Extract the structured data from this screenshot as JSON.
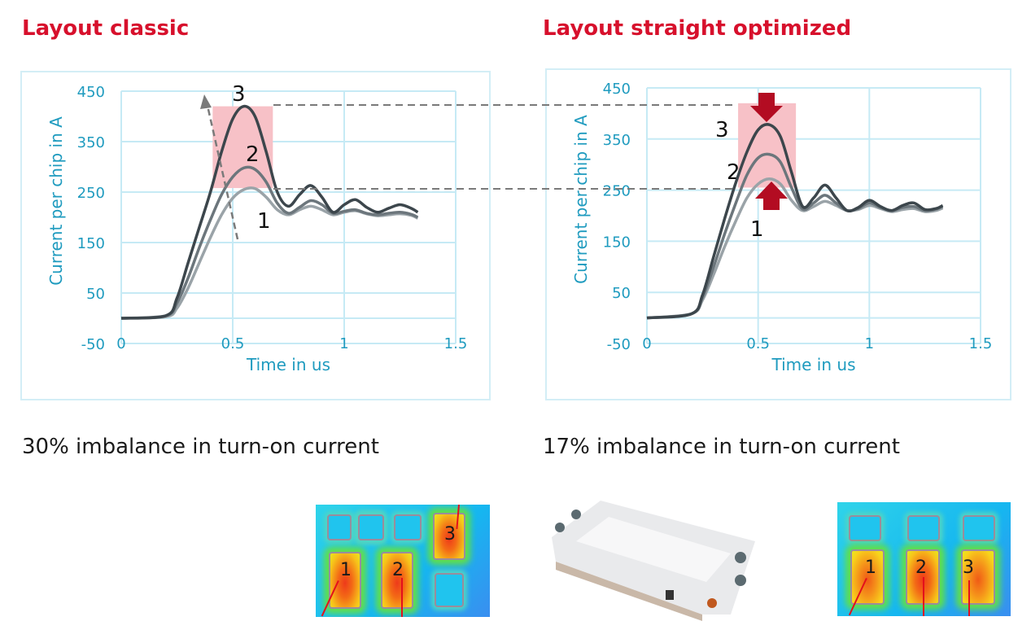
{
  "left": {
    "title": "Layout classic",
    "caption": "30% imbalance in turn-on current",
    "chips": [
      "1",
      "2",
      "3"
    ]
  },
  "right": {
    "title": "Layout straight optimized",
    "caption": "17% imbalance in turn-on current",
    "chips": [
      "1",
      "2",
      "3"
    ]
  },
  "colors": {
    "title": "#d7102c",
    "axis_text": "#1f9bbf",
    "grid": "#c6eaf5",
    "highlight": "#f7c1c7",
    "arrow": "#b30c22",
    "series": [
      "#9aa3a8",
      "#6c767c",
      "#3c464c"
    ]
  },
  "chart_data": [
    {
      "type": "line",
      "title": "Layout classic",
      "xlabel": "Time in us",
      "ylabel": "Current per chip in A",
      "xlim": [
        0,
        1.5
      ],
      "ylim": [
        -50,
        450
      ],
      "xticks": [
        "0",
        "0.5",
        "1",
        "1.5"
      ],
      "yticks": [
        "450",
        "350",
        "250",
        "150",
        "50",
        "-50"
      ],
      "grid": true,
      "highlight_band": {
        "x": [
          0.41,
          0.68
        ],
        "y": [
          258,
          420
        ]
      },
      "series": [
        {
          "name": "1",
          "x": [
            0,
            0.2,
            0.25,
            0.3,
            0.35,
            0.4,
            0.45,
            0.5,
            0.55,
            0.6,
            0.65,
            0.7,
            0.75,
            0.8,
            0.85,
            0.9,
            0.95,
            1.0,
            1.05,
            1.1,
            1.15,
            1.2,
            1.25,
            1.3,
            1.33
          ],
          "y": [
            0,
            3,
            20,
            60,
            110,
            160,
            205,
            238,
            255,
            257,
            240,
            215,
            205,
            215,
            222,
            215,
            205,
            210,
            213,
            207,
            203,
            205,
            207,
            204,
            198
          ]
        },
        {
          "name": "2",
          "x": [
            0,
            0.2,
            0.25,
            0.3,
            0.35,
            0.4,
            0.45,
            0.5,
            0.55,
            0.6,
            0.65,
            0.7,
            0.75,
            0.8,
            0.85,
            0.9,
            0.95,
            1.0,
            1.05,
            1.1,
            1.15,
            1.2,
            1.25,
            1.3,
            1.33
          ],
          "y": [
            0,
            5,
            30,
            80,
            140,
            195,
            245,
            280,
            298,
            295,
            270,
            228,
            208,
            220,
            233,
            225,
            208,
            212,
            215,
            208,
            205,
            208,
            210,
            206,
            200
          ]
        },
        {
          "name": "3",
          "x": [
            0,
            0.2,
            0.25,
            0.3,
            0.35,
            0.4,
            0.45,
            0.5,
            0.55,
            0.6,
            0.65,
            0.7,
            0.75,
            0.8,
            0.85,
            0.9,
            0.95,
            1.0,
            1.05,
            1.1,
            1.15,
            1.2,
            1.25,
            1.3,
            1.33
          ],
          "y": [
            0,
            5,
            40,
            110,
            180,
            250,
            330,
            395,
            420,
            400,
            330,
            250,
            222,
            245,
            263,
            240,
            210,
            225,
            235,
            220,
            210,
            218,
            225,
            218,
            210
          ]
        }
      ]
    },
    {
      "type": "line",
      "title": "Layout straight optimized",
      "xlabel": "Time in us",
      "ylabel": "Current per chip in A",
      "xlim": [
        0,
        1.5
      ],
      "ylim": [
        -50,
        450
      ],
      "xticks": [
        "0",
        "0.5",
        "1",
        "1.5"
      ],
      "yticks": [
        "450",
        "350",
        "250",
        "150",
        "50",
        "-50"
      ],
      "grid": true,
      "highlight_band": {
        "x": [
          0.41,
          0.67
        ],
        "y": [
          255,
          420
        ]
      },
      "series": [
        {
          "name": "1",
          "x": [
            0,
            0.2,
            0.25,
            0.3,
            0.35,
            0.4,
            0.45,
            0.5,
            0.55,
            0.6,
            0.65,
            0.7,
            0.75,
            0.8,
            0.85,
            0.9,
            0.95,
            1.0,
            1.05,
            1.1,
            1.15,
            1.2,
            1.25,
            1.3,
            1.33
          ],
          "y": [
            0,
            8,
            35,
            85,
            140,
            190,
            235,
            262,
            272,
            262,
            230,
            210,
            218,
            228,
            220,
            210,
            212,
            220,
            214,
            208,
            212,
            214,
            208,
            210,
            215
          ]
        },
        {
          "name": "2",
          "x": [
            0,
            0.2,
            0.25,
            0.3,
            0.35,
            0.4,
            0.45,
            0.5,
            0.55,
            0.6,
            0.65,
            0.7,
            0.75,
            0.8,
            0.85,
            0.9,
            0.95,
            1.0,
            1.05,
            1.1,
            1.15,
            1.2,
            1.25,
            1.3,
            1.33
          ],
          "y": [
            0,
            8,
            40,
            100,
            165,
            225,
            280,
            313,
            320,
            305,
            255,
            213,
            225,
            240,
            225,
            210,
            214,
            225,
            216,
            210,
            216,
            218,
            210,
            213,
            218
          ]
        },
        {
          "name": "3",
          "x": [
            0,
            0.2,
            0.25,
            0.3,
            0.35,
            0.4,
            0.45,
            0.5,
            0.55,
            0.6,
            0.65,
            0.7,
            0.75,
            0.8,
            0.85,
            0.9,
            0.95,
            1.0,
            1.05,
            1.1,
            1.15,
            1.2,
            1.25,
            1.3,
            1.33
          ],
          "y": [
            0,
            8,
            45,
            120,
            195,
            265,
            325,
            368,
            378,
            355,
            285,
            218,
            235,
            260,
            235,
            210,
            216,
            230,
            218,
            210,
            220,
            225,
            212,
            214,
            220
          ]
        }
      ]
    }
  ]
}
